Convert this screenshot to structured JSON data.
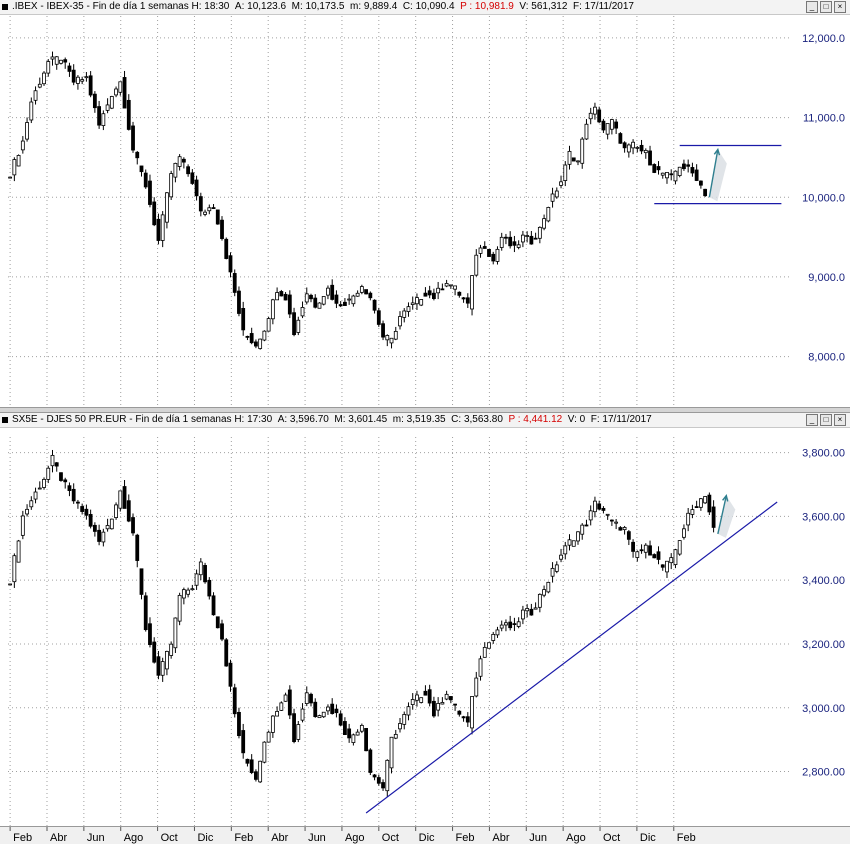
{
  "colors": {
    "candle": "#000000",
    "line_drawn": "#1a1aa8",
    "arrow": "#2f7f8f",
    "axis_text": "#1a237e",
    "grid": "#a0a0a0"
  },
  "window_buttons": [
    "_",
    "□",
    "×"
  ],
  "chart_data": [
    {
      "type": "candlestick",
      "symbol": ".IBEX",
      "header": {
        "prefix": ".IBEX - IBEX-35 - Fin de día 1 semanas ",
        "h": "H: 18:30",
        "a": "A: 10,123.6",
        "m": "M: 10,173.5",
        "mn": "m: 9,889.4",
        "c": "C: 10,090.4",
        "p": "P : 10,981.9",
        "v": "V: 561,312",
        "f": "F: 17/11/2017"
      },
      "y_ticks": [
        "12,000.0",
        "11,000.0",
        "10,000.0",
        "9,000.0",
        "8,000.0"
      ],
      "y_tick_values": [
        12000,
        11000,
        10000,
        9000,
        8000
      ],
      "ylim": [
        7480,
        12200
      ],
      "anchors": [
        [
          0,
          10300
        ],
        [
          3,
          10700
        ],
        [
          5,
          11200
        ],
        [
          9,
          11700
        ],
        [
          12,
          11750
        ],
        [
          15,
          11450
        ],
        [
          18,
          11500
        ],
        [
          21,
          10900
        ],
        [
          24,
          11300
        ],
        [
          26,
          11450
        ],
        [
          29,
          10600
        ],
        [
          32,
          10150
        ],
        [
          35,
          9450
        ],
        [
          38,
          10300
        ],
        [
          40,
          10500
        ],
        [
          43,
          10200
        ],
        [
          45,
          9800
        ],
        [
          48,
          9900
        ],
        [
          50,
          9500
        ],
        [
          53,
          8800
        ],
        [
          55,
          8300
        ],
        [
          58,
          8150
        ],
        [
          60,
          8350
        ],
        [
          63,
          8850
        ],
        [
          65,
          8750
        ],
        [
          67,
          8300
        ],
        [
          70,
          8800
        ],
        [
          72,
          8650
        ],
        [
          75,
          8850
        ],
        [
          77,
          8650
        ],
        [
          80,
          8700
        ],
        [
          83,
          8900
        ],
        [
          85,
          8750
        ],
        [
          88,
          8250
        ],
        [
          90,
          8200
        ],
        [
          92,
          8500
        ],
        [
          95,
          8650
        ],
        [
          98,
          8800
        ],
        [
          100,
          8750
        ],
        [
          103,
          8950
        ],
        [
          105,
          8850
        ],
        [
          108,
          8650
        ],
        [
          110,
          9300
        ],
        [
          112,
          9400
        ],
        [
          114,
          9200
        ],
        [
          116,
          9500
        ],
        [
          119,
          9350
        ],
        [
          121,
          9500
        ],
        [
          123,
          9450
        ],
        [
          125,
          9600
        ],
        [
          127,
          9900
        ],
        [
          130,
          10200
        ],
        [
          132,
          10550
        ],
        [
          134,
          10450
        ],
        [
          136,
          10950
        ],
        [
          138,
          11100
        ],
        [
          140,
          10850
        ],
        [
          142,
          10950
        ],
        [
          145,
          10600
        ],
        [
          147,
          10650
        ],
        [
          150,
          10550
        ],
        [
          152,
          10350
        ],
        [
          154,
          10300
        ],
        [
          156,
          10250
        ],
        [
          158,
          10400
        ],
        [
          160,
          10350
        ],
        [
          162,
          10250
        ],
        [
          164,
          10050
        ]
      ],
      "anchors_note": "weekly closes (index units) for weeks 0..164",
      "hlines": [
        {
          "value": 10650,
          "from": 158,
          "to": 182
        },
        {
          "value": 9920,
          "from": 152,
          "to": 182
        }
      ],
      "arrow": {
        "from": [
          165,
          10000
        ],
        "to": [
          167,
          10600
        ]
      }
    },
    {
      "type": "candlestick",
      "symbol": "SX5E",
      "header": {
        "prefix": "SX5E - DJES 50 PR.EUR - Fin de día 1 semanas ",
        "h": "H: 17:30",
        "a": "A: 3,596.70",
        "m": "M: 3,601.45",
        "mn": "m: 3,519.35",
        "c": "C: 3,563.80",
        "p": "P : 4,441.12",
        "v": "V: 0",
        "f": "F: 17/11/2017"
      },
      "y_ticks": [
        "3,800.00",
        "3,600.00",
        "3,400.00",
        "3,200.00",
        "3,000.00",
        "2,800.00"
      ],
      "y_tick_values": [
        3800,
        3600,
        3400,
        3200,
        3000,
        2800
      ],
      "ylim": [
        2645,
        3830
      ],
      "anchors": [
        [
          0,
          3400
        ],
        [
          3,
          3600
        ],
        [
          5,
          3650
        ],
        [
          8,
          3720
        ],
        [
          10,
          3780
        ],
        [
          12,
          3720
        ],
        [
          15,
          3650
        ],
        [
          18,
          3600
        ],
        [
          21,
          3520
        ],
        [
          24,
          3600
        ],
        [
          26,
          3680
        ],
        [
          29,
          3550
        ],
        [
          32,
          3250
        ],
        [
          35,
          3100
        ],
        [
          38,
          3200
        ],
        [
          40,
          3350
        ],
        [
          43,
          3380
        ],
        [
          45,
          3450
        ],
        [
          48,
          3300
        ],
        [
          50,
          3220
        ],
        [
          53,
          2980
        ],
        [
          55,
          2850
        ],
        [
          58,
          2780
        ],
        [
          60,
          2900
        ],
        [
          63,
          3000
        ],
        [
          65,
          3050
        ],
        [
          67,
          2900
        ],
        [
          70,
          3050
        ],
        [
          72,
          2980
        ],
        [
          75,
          3000
        ],
        [
          77,
          2980
        ],
        [
          80,
          2900
        ],
        [
          83,
          2950
        ],
        [
          85,
          2800
        ],
        [
          88,
          2750
        ],
        [
          90,
          2900
        ],
        [
          92,
          2950
        ],
        [
          95,
          3020
        ],
        [
          98,
          3050
        ],
        [
          100,
          2980
        ],
        [
          103,
          3050
        ],
        [
          105,
          3000
        ],
        [
          108,
          2950
        ],
        [
          110,
          3100
        ],
        [
          112,
          3200
        ],
        [
          114,
          3230
        ],
        [
          116,
          3260
        ],
        [
          119,
          3250
        ],
        [
          121,
          3300
        ],
        [
          123,
          3300
        ],
        [
          125,
          3350
        ],
        [
          127,
          3400
        ],
        [
          130,
          3480
        ],
        [
          132,
          3520
        ],
        [
          134,
          3550
        ],
        [
          136,
          3580
        ],
        [
          138,
          3640
        ],
        [
          140,
          3620
        ],
        [
          142,
          3580
        ],
        [
          145,
          3560
        ],
        [
          147,
          3480
        ],
        [
          150,
          3500
        ],
        [
          152,
          3480
        ],
        [
          154,
          3440
        ],
        [
          156,
          3460
        ],
        [
          158,
          3530
        ],
        [
          160,
          3600
        ],
        [
          162,
          3640
        ],
        [
          164,
          3670
        ],
        [
          166,
          3560
        ]
      ],
      "anchors_note": "weekly closes (index units) for weeks 0..166",
      "trendline": {
        "from": [
          84,
          2670
        ],
        "to": [
          181,
          3645
        ]
      },
      "arrow": {
        "from": [
          167,
          3545
        ],
        "to": [
          169,
          3665
        ]
      }
    }
  ],
  "x_axis": {
    "labels": [
      "Feb",
      "Abr",
      "Jun",
      "Ago",
      "Oct",
      "Dic",
      "Feb",
      "Abr",
      "Jun",
      "Ago",
      "Oct",
      "Dic",
      "Feb",
      "Abr",
      "Jun",
      "Ago",
      "Oct",
      "Dic",
      "Feb"
    ],
    "label_weeks": [
      0,
      8.7,
      17.4,
      26.1,
      34.8,
      43.5,
      52.2,
      60.9,
      69.6,
      78.3,
      87,
      95.7,
      104.4,
      113.1,
      121.8,
      130.5,
      139.2,
      147.9,
      156.6
    ]
  }
}
